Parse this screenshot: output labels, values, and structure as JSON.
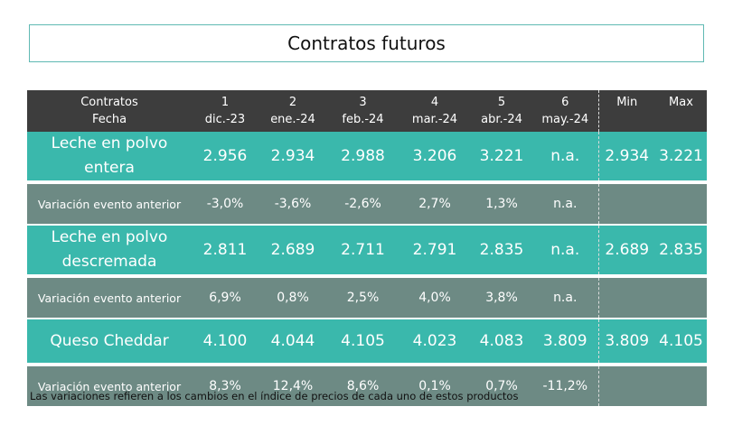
{
  "title": "Contratos futuros",
  "header": {
    "line1": [
      "Contratos",
      "1",
      "2",
      "3",
      "4",
      "5",
      "6",
      "Min",
      "Max"
    ],
    "line2": [
      "Fecha",
      "dic.-23",
      "ene.-24",
      "feb.-24",
      "mar.-24",
      "abr.-24",
      "may.-24"
    ]
  },
  "rows": [
    {
      "label1": "Leche en polvo",
      "label2": "entera",
      "values": [
        "2.956",
        "2.934",
        "2.988",
        "3.206",
        "3.221",
        "n.a."
      ],
      "min": "2.934",
      "max": "3.221"
    },
    {
      "label": "Variación evento anterior",
      "values": [
        "-3,0%",
        "-3,6%",
        "-2,6%",
        "2,7%",
        "1,3%",
        "n.a."
      ]
    },
    {
      "label1": "Leche en polvo",
      "label2": "descremada",
      "values": [
        "2.811",
        "2.689",
        "2.711",
        "2.791",
        "2.835",
        "n.a."
      ],
      "min": "2.689",
      "max": "2.835"
    },
    {
      "label": "Variación evento anterior",
      "values": [
        "6,9%",
        "0,8%",
        "2,5%",
        "4,0%",
        "3,8%",
        "n.a."
      ]
    },
    {
      "label1": "Queso Cheddar",
      "values": [
        "4.100",
        "4.044",
        "4.105",
        "4.023",
        "4.083",
        "3.809"
      ],
      "min": "3.809",
      "max": "4.105"
    },
    {
      "label": "Variación evento anterior",
      "values": [
        "8,3%",
        "12,4%",
        "8,6%",
        "0,1%",
        "0,7%",
        "-11,2%"
      ]
    }
  ],
  "note": "Las variaciones refieren a los cambios en el índice de precios de cada uno de estos productos",
  "colors": {
    "header": "#3d3d3d",
    "product_row": "#3ab8ac",
    "variation_row": "#6d8a84",
    "title_border": "#5fb9b3"
  }
}
